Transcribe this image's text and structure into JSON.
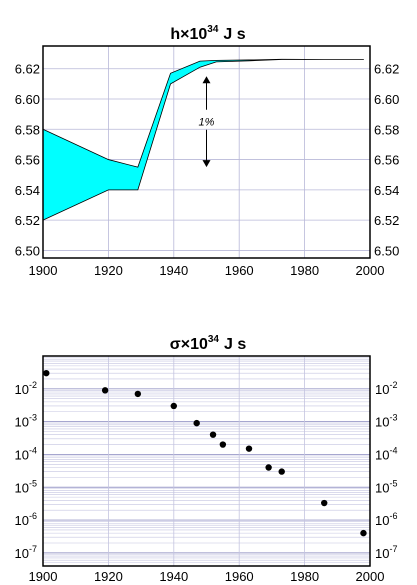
{
  "chart_data": [
    {
      "type": "area",
      "title": {
        "base": "h",
        "times": "×",
        "mantissa": "10",
        "exp": "34",
        "unit": "J s"
      },
      "xlim": [
        1900,
        2000
      ],
      "ylim": [
        6.495,
        6.635
      ],
      "xticks": [
        1900,
        1920,
        1940,
        1960,
        1980,
        2000
      ],
      "yticks": [
        "6.50",
        "6.52",
        "6.54",
        "6.56",
        "6.58",
        "6.60",
        "6.62"
      ],
      "grid": true,
      "series": [
        {
          "x": [
            1900,
            1920,
            1929,
            1939,
            1948,
            1953,
            1963,
            1973,
            1986,
            1998
          ],
          "lower": [
            6.52,
            6.54,
            6.54,
            6.61,
            6.621,
            6.6245,
            6.6252,
            6.6261,
            6.62607,
            6.62607
          ],
          "upper": [
            6.58,
            6.56,
            6.555,
            6.617,
            6.625,
            6.6255,
            6.6258,
            6.6262,
            6.62608,
            6.62608
          ]
        }
      ],
      "fill_color": "#00ffff",
      "annotations": [
        {
          "text": "1%",
          "x": 1950,
          "y_top": 6.615,
          "y_bottom": 6.555
        }
      ]
    },
    {
      "type": "scatter",
      "title": {
        "base": "σ",
        "times": "×",
        "mantissa": "10",
        "exp": "34",
        "unit": "J s"
      },
      "xlim": [
        1900,
        2000
      ],
      "log_y": true,
      "ylim_exp": [
        -7.4,
        -1.0
      ],
      "xticks": [
        1900,
        1920,
        1940,
        1960,
        1980,
        2000
      ],
      "yticks": [
        {
          "base": "10",
          "exp": "-2"
        },
        {
          "base": "10",
          "exp": "-3"
        },
        {
          "base": "10",
          "exp": "-4"
        },
        {
          "base": "10",
          "exp": "-5"
        },
        {
          "base": "10",
          "exp": "-6"
        },
        {
          "base": "10",
          "exp": "-7"
        }
      ],
      "grid": true,
      "points": {
        "x": [
          1901,
          1919,
          1929,
          1940,
          1947,
          1952,
          1955,
          1963,
          1969,
          1973,
          1986,
          1998
        ],
        "y": [
          0.03,
          0.009,
          0.007,
          0.003,
          0.0009,
          0.0004,
          0.0002,
          0.00015,
          4e-05,
          3e-05,
          3.3e-06,
          4e-07
        ]
      },
      "marker_color": "#000000"
    }
  ]
}
